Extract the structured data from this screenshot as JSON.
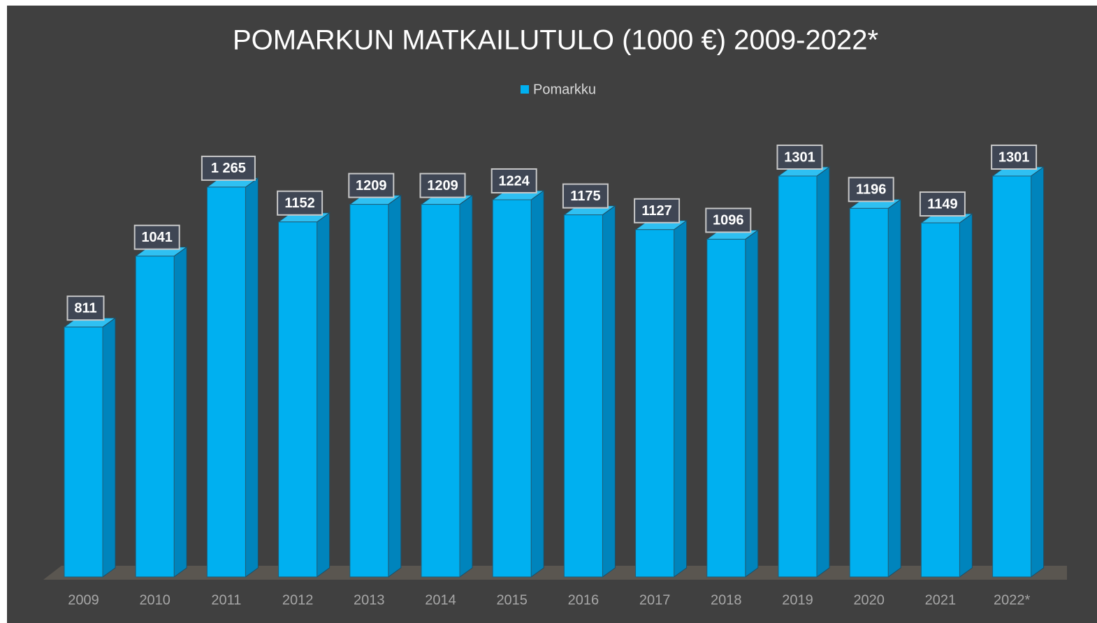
{
  "chart_data": {
    "type": "bar3d",
    "title": "POMARKUN MATKAILUTULO (1000 €) 2009-2022*",
    "categories": [
      "2009",
      "2010",
      "2011",
      "2012",
      "2013",
      "2014",
      "2015",
      "2016",
      "2017",
      "2018",
      "2019",
      "2020",
      "2021",
      "2022*"
    ],
    "series": [
      {
        "name": "Pomarkku",
        "color": "#00b0f0",
        "values": [
          811,
          1041,
          1265,
          1152,
          1209,
          1209,
          1224,
          1175,
          1127,
          1096,
          1301,
          1196,
          1149,
          1301
        ],
        "value_labels": [
          "811",
          "1041",
          "1 265",
          "1152",
          "1209",
          "1209",
          "1224",
          "1175",
          "1127",
          "1096",
          "1301",
          "1196",
          "1149",
          "1301"
        ]
      }
    ],
    "legend": "top"
  }
}
